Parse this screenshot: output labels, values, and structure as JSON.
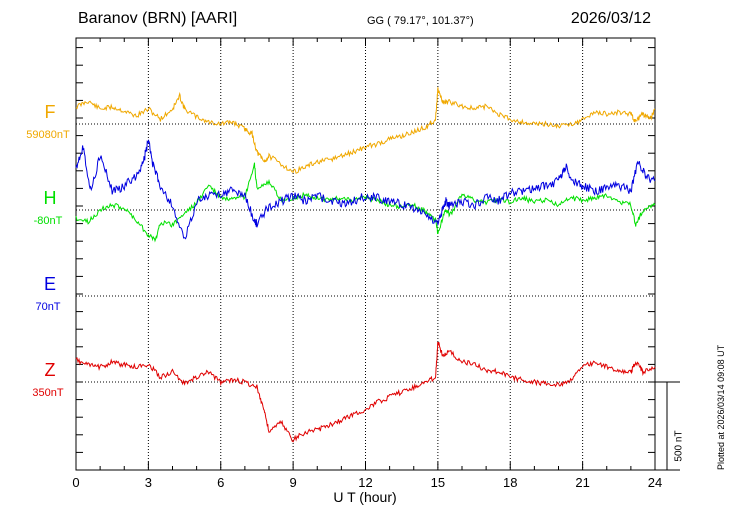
{
  "header": {
    "station": "Baranov (BRN)  [AARI]",
    "coords": "GG ( 79.17°, 101.37°)",
    "date": "2026/03/12",
    "plotted": "Plotted at 2026/03/14 09:08 UT"
  },
  "scale_label": "500 nT",
  "chart_data": {
    "type": "line",
    "title": "Baranov (BRN)  [AARI]",
    "xlabel": "U T (hour)",
    "x_ticks": [
      0,
      3,
      6,
      9,
      12,
      15,
      18,
      21,
      24
    ],
    "xlim": [
      0,
      24
    ],
    "grid": true,
    "scale_bar_nT": 500,
    "series": [
      {
        "name": "F",
        "baseline_label": "59080nT",
        "color": "#f0a800",
        "points": [
          [
            0,
            83
          ],
          [
            0.5,
            77
          ],
          [
            1,
            85
          ],
          [
            1.5,
            83
          ],
          [
            2,
            87
          ],
          [
            2.5,
            92
          ],
          [
            3,
            85
          ],
          [
            3.5,
            95
          ],
          [
            4,
            85
          ],
          [
            4.3,
            72
          ],
          [
            4.5,
            85
          ],
          [
            5,
            93
          ],
          [
            5.5,
            98
          ],
          [
            6,
            100
          ],
          [
            6.5,
            98
          ],
          [
            7,
            105
          ],
          [
            7.3,
            110
          ],
          [
            7.5,
            128
          ],
          [
            7.8,
            138
          ],
          [
            8,
            132
          ],
          [
            8.5,
            140
          ],
          [
            9,
            148
          ],
          [
            9.5,
            143
          ],
          [
            10,
            138
          ],
          [
            10.5,
            136
          ],
          [
            11,
            132
          ],
          [
            11.5,
            128
          ],
          [
            12,
            123
          ],
          [
            12.5,
            120
          ],
          [
            13,
            115
          ],
          [
            13.5,
            112
          ],
          [
            14,
            108
          ],
          [
            14.5,
            103
          ],
          [
            14.9,
            95
          ],
          [
            15,
            65
          ],
          [
            15.2,
            78
          ],
          [
            15.5,
            78
          ],
          [
            16,
            82
          ],
          [
            16.5,
            85
          ],
          [
            17,
            82
          ],
          [
            17.5,
            90
          ],
          [
            18,
            95
          ],
          [
            18.5,
            98
          ],
          [
            19,
            100
          ],
          [
            19.5,
            100
          ],
          [
            20,
            102
          ],
          [
            20.5,
            100
          ],
          [
            21,
            96
          ],
          [
            21.5,
            88
          ],
          [
            22,
            90
          ],
          [
            22.5,
            88
          ],
          [
            23,
            90
          ],
          [
            23.2,
            98
          ],
          [
            23.5,
            90
          ],
          [
            23.8,
            95
          ],
          [
            24,
            85
          ]
        ]
      },
      {
        "name": "H",
        "baseline_label": "-80nT",
        "color": "#00e000",
        "points": [
          [
            0,
            108
          ],
          [
            0.5,
            112
          ],
          [
            1,
            100
          ],
          [
            1.5,
            95
          ],
          [
            2,
            98
          ],
          [
            2.5,
            110
          ],
          [
            3,
            125
          ],
          [
            3.3,
            130
          ],
          [
            3.5,
            112
          ],
          [
            4,
            115
          ],
          [
            4.5,
            103
          ],
          [
            5,
            93
          ],
          [
            5.5,
            75
          ],
          [
            6,
            88
          ],
          [
            6.5,
            90
          ],
          [
            7,
            87
          ],
          [
            7.4,
            55
          ],
          [
            7.5,
            78
          ],
          [
            8,
            72
          ],
          [
            8.5,
            90
          ],
          [
            9,
            88
          ],
          [
            9.5,
            85
          ],
          [
            10,
            88
          ],
          [
            10.5,
            90
          ],
          [
            11,
            88
          ],
          [
            11.5,
            90
          ],
          [
            12,
            88
          ],
          [
            12.5,
            90
          ],
          [
            13,
            95
          ],
          [
            13.5,
            97
          ],
          [
            14,
            95
          ],
          [
            14.5,
            102
          ],
          [
            14.9,
            110
          ],
          [
            15,
            123
          ],
          [
            15.3,
            100
          ],
          [
            15.5,
            105
          ],
          [
            16,
            85
          ],
          [
            16.5,
            90
          ],
          [
            17,
            92
          ],
          [
            17.5,
            90
          ],
          [
            18,
            92
          ],
          [
            18.5,
            88
          ],
          [
            19,
            92
          ],
          [
            19.5,
            90
          ],
          [
            20,
            95
          ],
          [
            20.5,
            88
          ],
          [
            21,
            90
          ],
          [
            21.5,
            88
          ],
          [
            22,
            85
          ],
          [
            22.5,
            92
          ],
          [
            23,
            95
          ],
          [
            23.2,
            115
          ],
          [
            23.5,
            100
          ],
          [
            24,
            95
          ]
        ]
      },
      {
        "name": "E",
        "baseline_label": "70nT",
        "color": "#0000e0",
        "points": [
          [
            0,
            -30
          ],
          [
            0.3,
            -50
          ],
          [
            0.6,
            -5
          ],
          [
            1,
            -40
          ],
          [
            1.5,
            -5
          ],
          [
            2,
            -10
          ],
          [
            2.5,
            -20
          ],
          [
            2.8,
            -35
          ],
          [
            3,
            -55
          ],
          [
            3.2,
            -30
          ],
          [
            3.5,
            -10
          ],
          [
            4,
            10
          ],
          [
            4.5,
            45
          ],
          [
            5,
            5
          ],
          [
            5.5,
            0
          ],
          [
            6,
            -2
          ],
          [
            6.5,
            -5
          ],
          [
            7,
            0
          ],
          [
            7.4,
            25
          ],
          [
            7.5,
            28
          ],
          [
            8,
            10
          ],
          [
            8.5,
            5
          ],
          [
            9,
            0
          ],
          [
            9.5,
            5
          ],
          [
            10,
            0
          ],
          [
            10.5,
            5
          ],
          [
            11,
            8
          ],
          [
            11.5,
            5
          ],
          [
            12,
            0
          ],
          [
            12.5,
            2
          ],
          [
            13,
            5
          ],
          [
            13.5,
            8
          ],
          [
            14,
            12
          ],
          [
            14.5,
            18
          ],
          [
            15,
            28
          ],
          [
            15.3,
            5
          ],
          [
            15.5,
            10
          ],
          [
            16,
            5
          ],
          [
            16.5,
            10
          ],
          [
            17,
            2
          ],
          [
            17.5,
            5
          ],
          [
            18,
            -3
          ],
          [
            18.5,
            -5
          ],
          [
            19,
            -8
          ],
          [
            19.5,
            -10
          ],
          [
            20,
            -15
          ],
          [
            20.3,
            -30
          ],
          [
            20.6,
            -15
          ],
          [
            21,
            -10
          ],
          [
            21.5,
            -5
          ],
          [
            22,
            -8
          ],
          [
            22.5,
            -10
          ],
          [
            23,
            -5
          ],
          [
            23.3,
            -35
          ],
          [
            23.6,
            -20
          ],
          [
            24,
            -15
          ]
        ]
      },
      {
        "name": "Z",
        "baseline_label": "350nT",
        "color": "#e00000",
        "points": [
          [
            0,
            78
          ],
          [
            0.5,
            83
          ],
          [
            1,
            85
          ],
          [
            1.5,
            80
          ],
          [
            2,
            83
          ],
          [
            2.5,
            85
          ],
          [
            3,
            82
          ],
          [
            3.5,
            95
          ],
          [
            4,
            90
          ],
          [
            4.5,
            102
          ],
          [
            5,
            95
          ],
          [
            5.5,
            90
          ],
          [
            6,
            100
          ],
          [
            6.5,
            98
          ],
          [
            7,
            100
          ],
          [
            7.5,
            105
          ],
          [
            7.8,
            128
          ],
          [
            8,
            150
          ],
          [
            8.5,
            140
          ],
          [
            9,
            158
          ],
          [
            9.5,
            150
          ],
          [
            10,
            148
          ],
          [
            10.5,
            143
          ],
          [
            11,
            138
          ],
          [
            11.5,
            132
          ],
          [
            12,
            128
          ],
          [
            12.5,
            120
          ],
          [
            13,
            115
          ],
          [
            13.5,
            110
          ],
          [
            14,
            105
          ],
          [
            14.5,
            100
          ],
          [
            14.9,
            95
          ],
          [
            15,
            60
          ],
          [
            15.2,
            73
          ],
          [
            15.5,
            70
          ],
          [
            16,
            80
          ],
          [
            16.5,
            82
          ],
          [
            17,
            88
          ],
          [
            17.5,
            90
          ],
          [
            18,
            95
          ],
          [
            18.5,
            98
          ],
          [
            19,
            100
          ],
          [
            19.5,
            102
          ],
          [
            20,
            103
          ],
          [
            20.5,
            98
          ],
          [
            21,
            85
          ],
          [
            21.5,
            80
          ],
          [
            22,
            85
          ],
          [
            22.5,
            88
          ],
          [
            23,
            90
          ],
          [
            23.2,
            80
          ],
          [
            23.5,
            90
          ],
          [
            24,
            85
          ]
        ]
      }
    ]
  }
}
